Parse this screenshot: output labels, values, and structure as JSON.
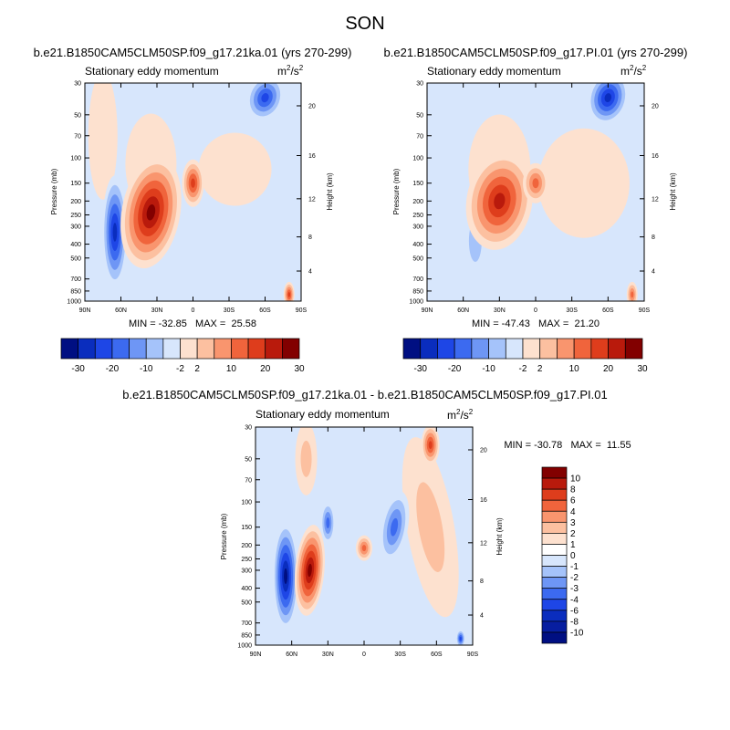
{
  "page": {
    "title": "SON"
  },
  "chart_data": [
    {
      "type": "heatmap",
      "panel": "left",
      "case_title": "b.e21.B1850CAM5CLM50SP.f09_g17.21ka.01 (yrs 270-299)",
      "subtitle": "Stationary eddy momentum",
      "units": "m²/s²",
      "units_base": "m",
      "units_mid": "2",
      "units_tail": "/s",
      "units_sup": "2",
      "ylabel": "Pressure (mb)",
      "ylabel_right": "Height (km)",
      "x_ticks": [
        "90N",
        "60N",
        "30N",
        "0",
        "30S",
        "60S",
        "90S"
      ],
      "xlim": [
        90,
        -90
      ],
      "y_ticks": [
        30,
        50,
        70,
        100,
        150,
        200,
        250,
        300,
        400,
        500,
        700,
        850,
        1000
      ],
      "ylim": [
        30,
        1000
      ],
      "y_scale": "log",
      "height_ticks": [
        4,
        8,
        12,
        16,
        20
      ],
      "min_max_text": "MIN = -32.85   MAX =  25.58",
      "min": -32.85,
      "max": 25.58,
      "colorbar": {
        "orientation": "horizontal",
        "labels": [
          "-30",
          "-20",
          "-10",
          "-2",
          "2",
          "10",
          "20",
          "30"
        ],
        "levels": [
          -30,
          -25,
          -20,
          -15,
          -10,
          -5,
          -2,
          2,
          5,
          10,
          15,
          20,
          25,
          30
        ]
      },
      "features": [
        {
          "lat": 65,
          "p": 330,
          "value": -32.85
        },
        {
          "lat": 35,
          "p": 240,
          "value": 25.58
        },
        {
          "lat": 0,
          "p": 150,
          "value": 15
        },
        {
          "lat": -60,
          "p": 38,
          "value": -15
        }
      ]
    },
    {
      "type": "heatmap",
      "panel": "right",
      "case_title": "b.e21.B1850CAM5CLM50SP.f09_g17.PI.01 (yrs 270-299)",
      "subtitle": "Stationary eddy momentum",
      "units": "m²/s²",
      "units_base": "m",
      "units_mid": "2",
      "units_tail": "/s",
      "units_sup": "2",
      "ylabel": "Pressure (mb)",
      "ylabel_right": "Height (km)",
      "x_ticks": [
        "90N",
        "60N",
        "30N",
        "0",
        "30S",
        "60S",
        "90S"
      ],
      "xlim": [
        90,
        -90
      ],
      "y_ticks": [
        30,
        50,
        70,
        100,
        150,
        200,
        250,
        300,
        400,
        500,
        700,
        850,
        1000
      ],
      "ylim": [
        30,
        1000
      ],
      "y_scale": "log",
      "height_ticks": [
        4,
        8,
        12,
        16,
        20
      ],
      "min_max_text": "MIN = -47.43   MAX =  21.20",
      "min": -47.43,
      "max": 21.2,
      "colorbar": {
        "orientation": "horizontal",
        "labels": [
          "-30",
          "-20",
          "-10",
          "-2",
          "2",
          "10",
          "20",
          "30"
        ],
        "levels": [
          -30,
          -25,
          -20,
          -15,
          -10,
          -5,
          -2,
          2,
          5,
          10,
          15,
          20,
          25,
          30
        ]
      },
      "features": [
        {
          "lat": 55,
          "p": 350,
          "value": -5
        },
        {
          "lat": 30,
          "p": 200,
          "value": 21.2
        },
        {
          "lat": 0,
          "p": 150,
          "value": 12
        },
        {
          "lat": -60,
          "p": 38,
          "value": -25
        }
      ]
    },
    {
      "type": "heatmap",
      "panel": "difference",
      "case_title": "b.e21.B1850CAM5CLM50SP.f09_g17.21ka.01 - b.e21.B1850CAM5CLM50SP.f09_g17.PI.01",
      "subtitle": "Stationary eddy momentum",
      "units": "m²/s²",
      "units_base": "m",
      "units_mid": "2",
      "units_tail": "/s",
      "units_sup": "2",
      "ylabel": "Pressure (mb)",
      "ylabel_right": "Height (km)",
      "x_ticks": [
        "90N",
        "60N",
        "30N",
        "0",
        "30S",
        "60S",
        "90S"
      ],
      "xlim": [
        90,
        -90
      ],
      "y_ticks": [
        30,
        50,
        70,
        100,
        150,
        200,
        250,
        300,
        400,
        500,
        700,
        850,
        1000
      ],
      "ylim": [
        30,
        1000
      ],
      "y_scale": "log",
      "height_ticks": [
        4,
        8,
        12,
        16,
        20
      ],
      "min_max_text": "MIN = -30.78   MAX =  11.55",
      "min": -30.78,
      "max": 11.55,
      "colorbar": {
        "orientation": "vertical",
        "labels": [
          "10",
          "8",
          "6",
          "4",
          "3",
          "2",
          "1",
          "0",
          "-1",
          "-2",
          "-3",
          "-4",
          "-6",
          "-8",
          "-10"
        ],
        "levels": [
          10,
          8,
          6,
          4,
          3,
          2,
          1,
          0,
          -1,
          -2,
          -3,
          -4,
          -6,
          -8,
          -10
        ]
      },
      "features": [
        {
          "lat": 65,
          "p": 330,
          "value": -30.78
        },
        {
          "lat": 45,
          "p": 300,
          "value": 11.55
        },
        {
          "lat": 0,
          "p": 210,
          "value": 6
        },
        {
          "lat": -25,
          "p": 150,
          "value": -5
        },
        {
          "lat": -55,
          "p": 40,
          "value": 6
        }
      ]
    }
  ],
  "colors": {
    "neg": [
      "#000f82",
      "#0a2dbe",
      "#1e46e6",
      "#3c6af0",
      "#6e96f5",
      "#a5c3fa",
      "#d7e6fc"
    ],
    "pos": [
      "#fde1cf",
      "#fcc0a0",
      "#f9956e",
      "#f0643c",
      "#de3d1c",
      "#b91a0c",
      "#820000"
    ]
  }
}
